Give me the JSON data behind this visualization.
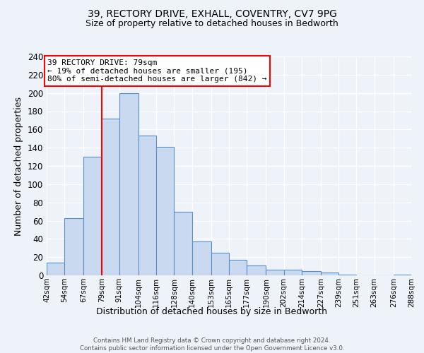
{
  "title1": "39, RECTORY DRIVE, EXHALL, COVENTRY, CV7 9PG",
  "title2": "Size of property relative to detached houses in Bedworth",
  "xlabel": "Distribution of detached houses by size in Bedworth",
  "ylabel": "Number of detached properties",
  "bin_edges": [
    42,
    54,
    67,
    79,
    91,
    104,
    116,
    128,
    140,
    153,
    165,
    177,
    190,
    202,
    214,
    227,
    239,
    251,
    263,
    276,
    288
  ],
  "bar_heights": [
    14,
    63,
    130,
    172,
    200,
    153,
    141,
    70,
    37,
    25,
    17,
    11,
    6,
    6,
    5,
    3,
    1,
    0,
    0,
    1
  ],
  "bar_color": "#c9d9f0",
  "bar_edgecolor": "#5b8ec4",
  "ylim": [
    0,
    240
  ],
  "yticks": [
    0,
    20,
    40,
    60,
    80,
    100,
    120,
    140,
    160,
    180,
    200,
    220,
    240
  ],
  "vline_x": 79,
  "vline_color": "red",
  "annotation_title": "39 RECTORY DRIVE: 79sqm",
  "annotation_line1": "← 19% of detached houses are smaller (195)",
  "annotation_line2": "80% of semi-detached houses are larger (842) →",
  "annotation_box_color": "white",
  "annotation_box_edgecolor": "red",
  "footer1": "Contains HM Land Registry data © Crown copyright and database right 2024.",
  "footer2": "Contains public sector information licensed under the Open Government Licence v3.0.",
  "bg_color": "#eef2f9",
  "grid_color": "white",
  "tick_labels": [
    "42sqm",
    "54sqm",
    "67sqm",
    "79sqm",
    "91sqm",
    "104sqm",
    "116sqm",
    "128sqm",
    "140sqm",
    "153sqm",
    "165sqm",
    "177sqm",
    "190sqm",
    "202sqm",
    "214sqm",
    "227sqm",
    "239sqm",
    "251sqm",
    "263sqm",
    "276sqm",
    "288sqm"
  ]
}
